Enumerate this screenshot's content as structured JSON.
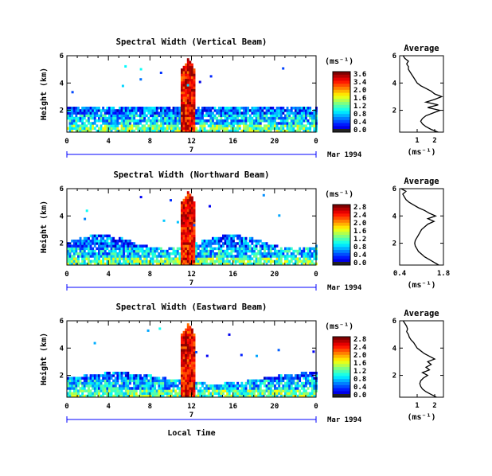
{
  "chart_data": [
    {
      "type": "heatmap",
      "title": "Spectral Width (Vertical Beam)",
      "ylabel": "Height (km)",
      "x_ticks": [
        "0",
        "4",
        "8",
        "12",
        "16",
        "20",
        "0"
      ],
      "xlim": [
        0,
        24
      ],
      "y_ticks": [
        "2",
        "4",
        "6"
      ],
      "ylim": [
        0.4,
        6
      ],
      "date_label_day": "7",
      "date_label_month": "Mar 1994",
      "colorbar": {
        "unit": "(ms⁻¹)",
        "ticks": [
          "3.6",
          "3.4",
          "2.0",
          "1.6",
          "1.2",
          "0.8",
          "0.4",
          "0.0"
        ],
        "range": [
          0,
          3.6
        ]
      },
      "average": {
        "title": "Average",
        "xlabel": "(ms⁻¹)",
        "x_ticks": [
          "1",
          "2"
        ],
        "xlim": [
          0,
          2.5
        ],
        "y_ticks": [
          "2",
          "4",
          "6"
        ],
        "ylim": [
          0.4,
          6
        ],
        "profile_height": [
          0.4,
          0.6,
          0.8,
          1.0,
          1.2,
          1.4,
          1.6,
          1.8,
          2.0,
          2.2,
          2.4,
          2.6,
          2.8,
          3.0,
          3.2,
          3.4,
          3.6,
          3.8,
          4.0,
          4.2,
          4.4,
          4.6,
          4.8,
          5.0,
          5.2,
          5.4,
          5.6,
          5.8,
          6.0
        ],
        "profile_value": [
          2.2,
          1.8,
          1.5,
          1.3,
          1.2,
          1.3,
          1.5,
          1.9,
          2.3,
          1.6,
          2.2,
          1.5,
          2.0,
          2.4,
          2.0,
          1.8,
          1.5,
          1.2,
          1.0,
          0.9,
          0.8,
          0.7,
          0.6,
          0.5,
          0.5,
          0.4,
          0.5,
          0.3,
          0.2
        ]
      }
    },
    {
      "type": "heatmap",
      "title": "Spectral Width (Northward Beam)",
      "ylabel": "Height (km)",
      "x_ticks": [
        "0",
        "4",
        "8",
        "12",
        "16",
        "20",
        "0"
      ],
      "xlim": [
        0,
        24
      ],
      "y_ticks": [
        "2",
        "4",
        "6"
      ],
      "ylim": [
        0.4,
        6
      ],
      "date_label_day": "7",
      "date_label_month": "Mar 1994",
      "colorbar": {
        "unit": "(ms⁻¹)",
        "ticks": [
          "2.8",
          "2.4",
          "2.0",
          "1.6",
          "1.2",
          "0.8",
          "0.4",
          "0.0"
        ],
        "range": [
          0,
          2.8
        ]
      },
      "average": {
        "title": "Average",
        "xlabel": "(ms⁻¹)",
        "x_ticks": [
          "0.4",
          "1.8"
        ],
        "xlim": [
          0.4,
          1.8
        ],
        "y_ticks": [
          "2",
          "4",
          "6"
        ],
        "ylim": [
          0.4,
          6
        ],
        "profile_height": [
          0.4,
          0.6,
          0.8,
          1.0,
          1.2,
          1.4,
          1.6,
          1.8,
          2.0,
          2.2,
          2.4,
          2.6,
          2.8,
          3.0,
          3.2,
          3.4,
          3.6,
          3.8,
          4.0,
          4.2,
          4.4,
          4.6,
          4.8,
          5.0,
          5.2,
          5.4,
          5.6,
          5.8,
          6.0
        ],
        "profile_value": [
          1.65,
          1.5,
          1.35,
          1.2,
          1.1,
          1.0,
          0.95,
          0.9,
          0.88,
          0.9,
          0.95,
          1.0,
          1.05,
          1.1,
          1.2,
          1.3,
          1.5,
          1.3,
          1.55,
          1.35,
          1.2,
          1.0,
          0.85,
          0.7,
          0.6,
          0.55,
          0.5,
          0.6,
          0.45
        ]
      }
    },
    {
      "type": "heatmap",
      "title": "Spectral Width (Eastward Beam)",
      "ylabel": "Height (km)",
      "x_ticks": [
        "0",
        "4",
        "8",
        "12",
        "16",
        "20",
        "0"
      ],
      "xlim": [
        0,
        24
      ],
      "y_ticks": [
        "2",
        "4",
        "6"
      ],
      "ylim": [
        0.4,
        6
      ],
      "date_label_day": "7",
      "date_label_month": "Mar 1994",
      "xlabel": "Local Time",
      "colorbar": {
        "unit": "(ms⁻¹)",
        "ticks": [
          "2.8",
          "2.4",
          "2.0",
          "1.6",
          "1.2",
          "0.8",
          "0.4",
          "0.0"
        ],
        "range": [
          0,
          2.8
        ]
      },
      "average": {
        "title": "Average",
        "xlabel": "(ms⁻¹)",
        "x_ticks": [
          "1",
          "2"
        ],
        "xlim": [
          0,
          2.5
        ],
        "y_ticks": [
          "2",
          "4",
          "6"
        ],
        "ylim": [
          0.4,
          6
        ],
        "profile_height": [
          0.4,
          0.6,
          0.8,
          1.0,
          1.2,
          1.4,
          1.6,
          1.8,
          2.0,
          2.2,
          2.4,
          2.6,
          2.8,
          3.0,
          3.2,
          3.4,
          3.6,
          3.8,
          4.0,
          4.2,
          4.4,
          4.6,
          4.8,
          5.0,
          5.2,
          5.4,
          5.6,
          5.8,
          6.0
        ],
        "profile_value": [
          2.1,
          1.8,
          1.5,
          1.3,
          1.2,
          1.15,
          1.2,
          1.35,
          1.6,
          1.3,
          1.7,
          1.5,
          1.8,
          1.6,
          2.0,
          1.7,
          1.4,
          1.2,
          1.0,
          0.9,
          0.8,
          0.65,
          0.55,
          0.5,
          0.4,
          0.45,
          0.4,
          0.3,
          0.2
        ]
      }
    }
  ]
}
